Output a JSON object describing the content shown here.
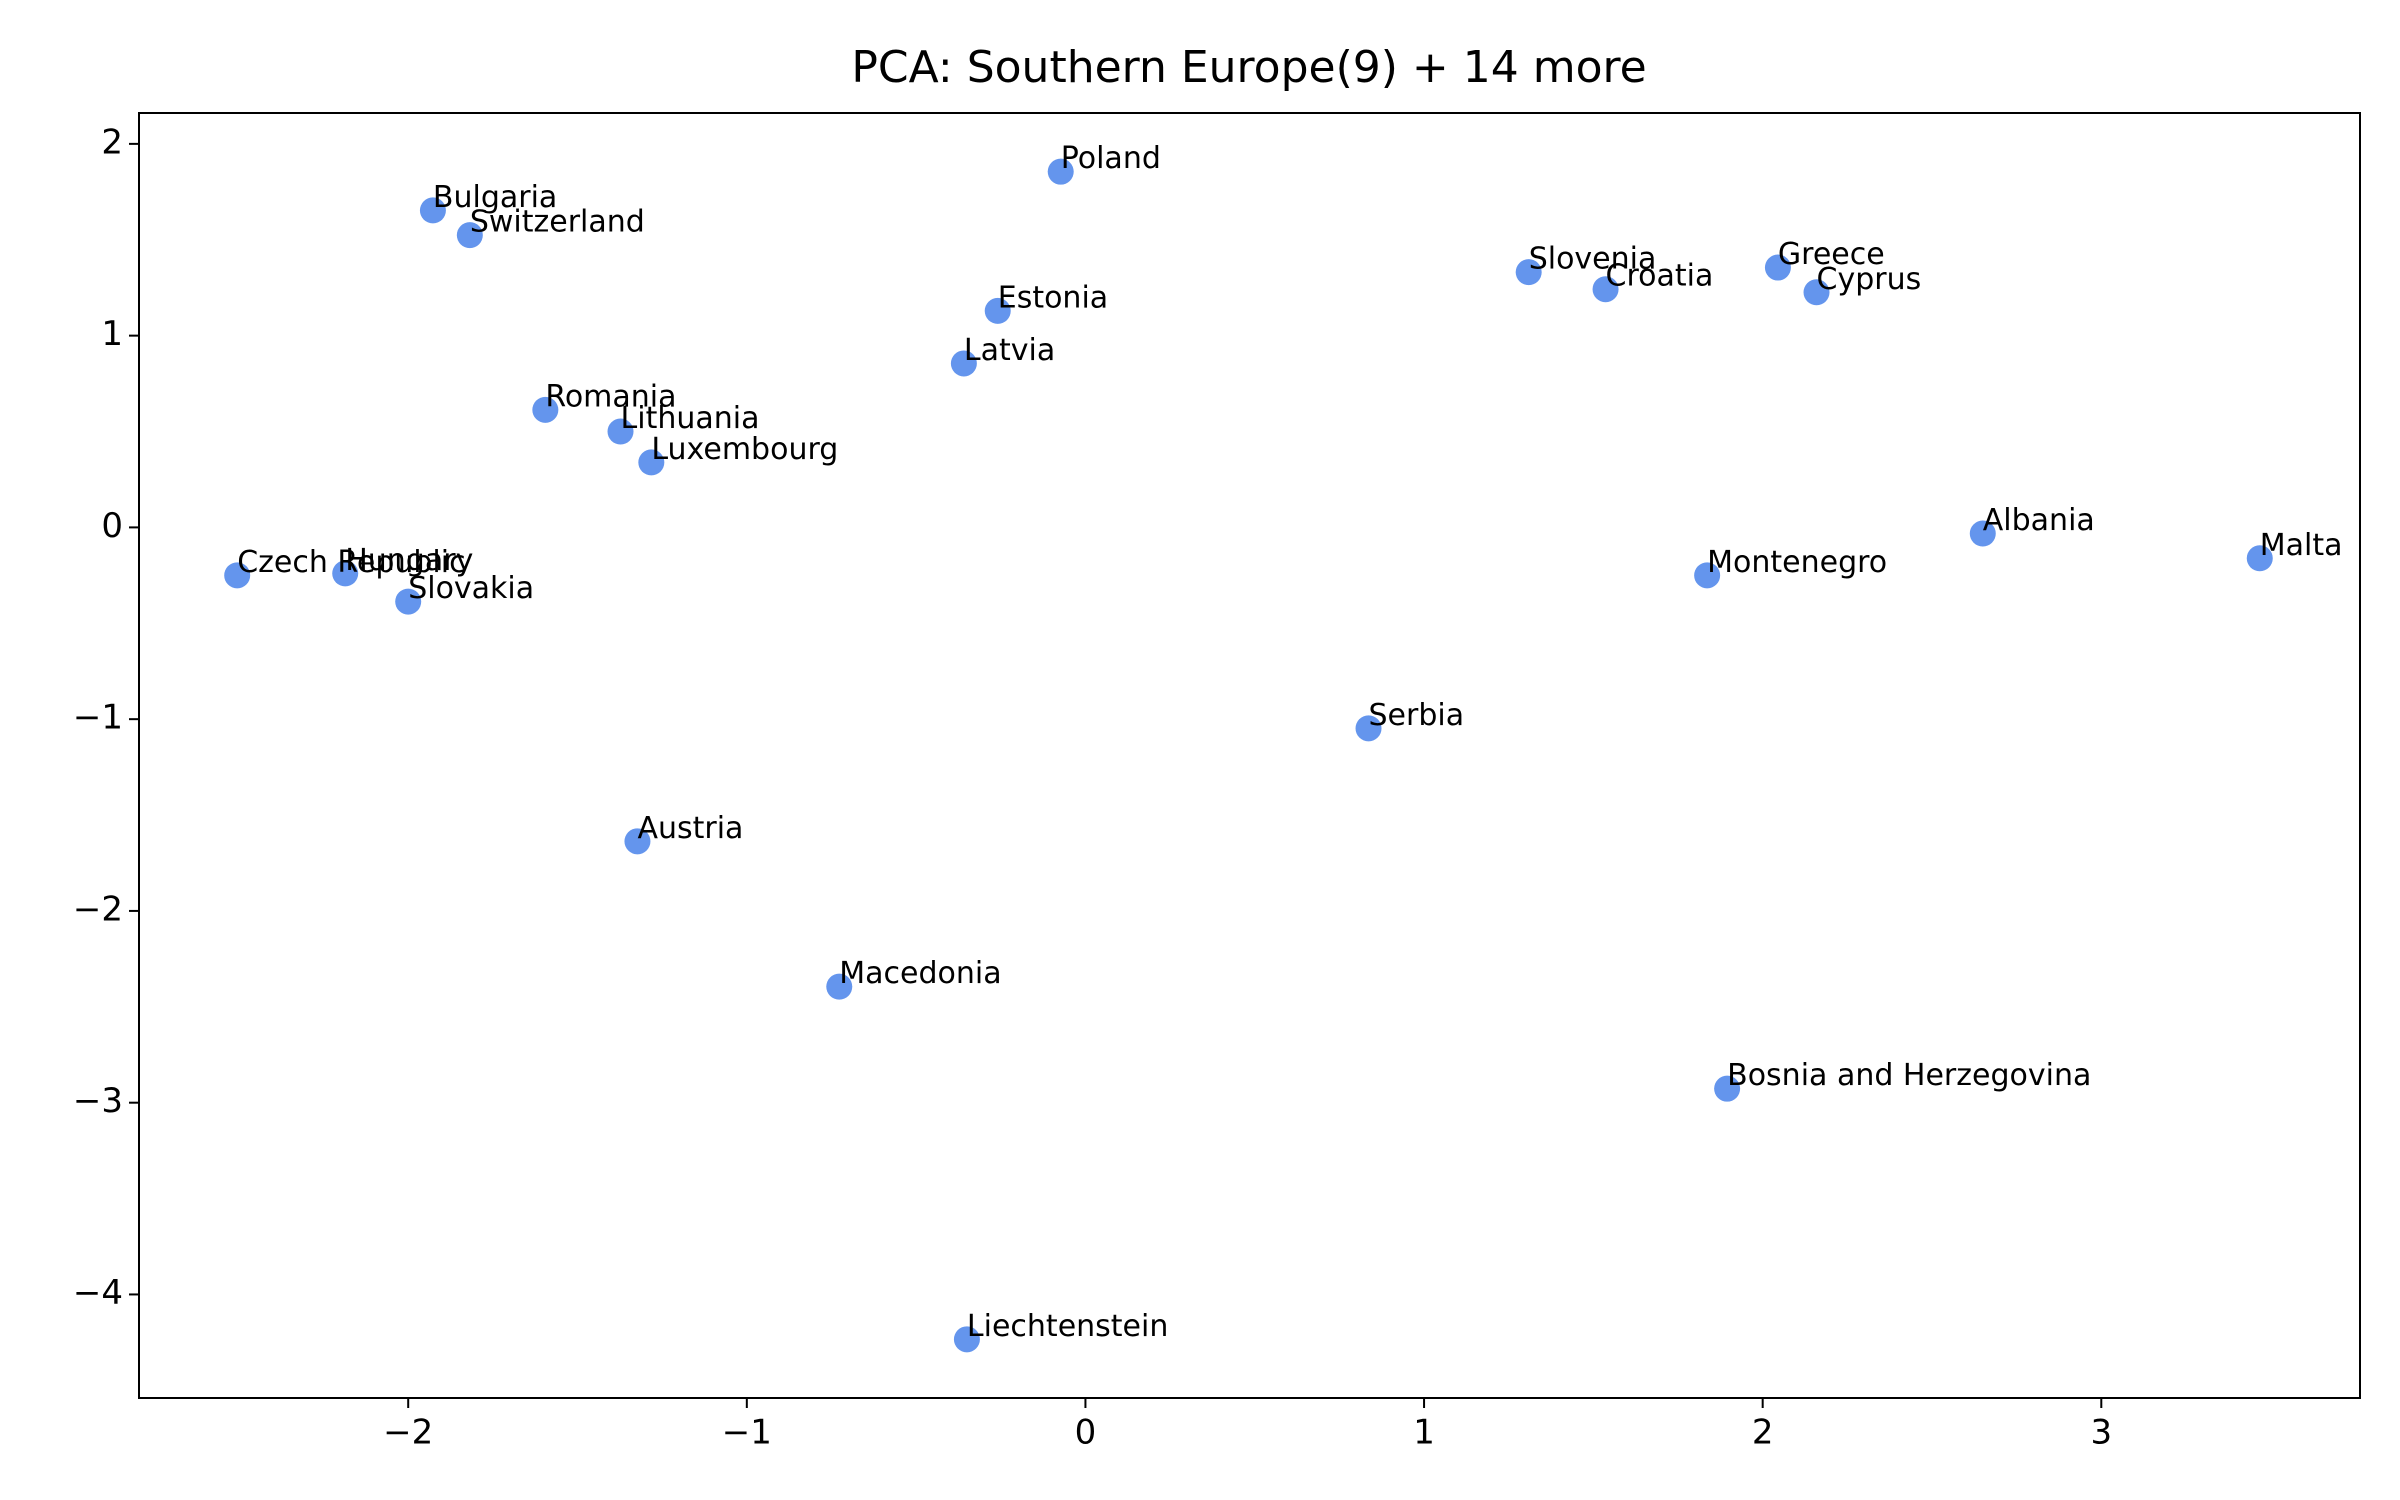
{
  "chart_data": {
    "type": "scatter",
    "title": "PCA: Southern Europe(9) + 14 more",
    "labels": [
      "Czech Republic",
      "Hungary",
      "Slovakia",
      "Bulgaria",
      "Switzerland",
      "Romania",
      "Lithuania",
      "Luxembourg",
      "Austria",
      "Macedonia",
      "Liechtenstein",
      "Latvia",
      "Estonia",
      "Poland",
      "Serbia",
      "Slovenia",
      "Croatia",
      "Greece",
      "Cyprus",
      "Montenegro",
      "Bosnia and Herzegovina",
      "Albania",
      "Malta"
    ],
    "x": [
      -2.505,
      -2.186,
      -2.0,
      -1.927,
      -1.818,
      -1.595,
      -1.373,
      -1.282,
      -1.323,
      -0.727,
      -0.35,
      -0.359,
      -0.259,
      -0.073,
      0.836,
      1.309,
      1.536,
      2.045,
      2.159,
      1.836,
      1.895,
      2.65,
      3.468
    ],
    "values": [
      -0.25,
      -0.24,
      -0.387,
      1.653,
      1.524,
      0.613,
      0.5,
      0.339,
      -1.637,
      -2.395,
      -4.234,
      0.855,
      1.129,
      1.855,
      -1.048,
      1.331,
      1.242,
      1.355,
      1.226,
      -0.25,
      -2.927,
      -0.032,
      -0.161
    ],
    "color": "#6495ed",
    "xlim": [
      -2.795,
      3.764
    ],
    "ylim": [
      -4.54,
      2.161
    ],
    "xticks": [
      {
        "value": -2,
        "label": "−2"
      },
      {
        "value": -1,
        "label": "−1"
      },
      0,
      1,
      2,
      3
    ],
    "yticks": [
      {
        "value": -4,
        "label": "−4"
      },
      {
        "value": -3,
        "label": "−3"
      },
      {
        "value": -2,
        "label": "−2"
      },
      {
        "value": -1,
        "label": "−1"
      },
      0,
      1,
      2
    ],
    "grid": false
  }
}
